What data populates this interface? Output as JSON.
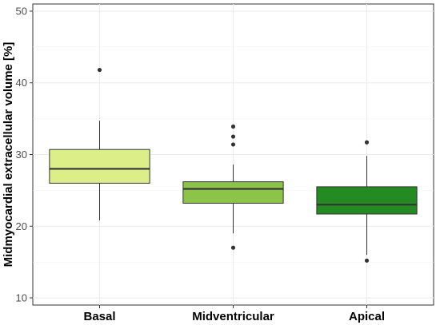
{
  "chart_data": {
    "type": "box",
    "title": "",
    "xlabel": "",
    "ylabel": "Midmyocardial extracellular volume [%]",
    "ylim": [
      9,
      51
    ],
    "y_ticks": [
      10,
      20,
      30,
      40,
      50
    ],
    "grid": true,
    "legend": "none",
    "categories": [
      "Basal",
      "Midventricular",
      "Apical"
    ],
    "boxes": [
      {
        "category": "Basal",
        "whisker_low": 20.8,
        "q1": 26.0,
        "median": 28.0,
        "q3": 30.7,
        "whisker_high": 34.7,
        "outliers": [
          41.8
        ],
        "color": "#dcee88"
      },
      {
        "category": "Midventricular",
        "whisker_low": 19.0,
        "q1": 23.2,
        "median": 25.2,
        "q3": 26.2,
        "whisker_high": 28.6,
        "outliers": [
          33.9,
          32.5,
          31.4,
          17.0
        ],
        "color": "#8cc349"
      },
      {
        "category": "Apical",
        "whisker_low": 16.0,
        "q1": 21.7,
        "median": 23.0,
        "q3": 25.5,
        "whisker_high": 29.8,
        "outliers": [
          31.7,
          15.2
        ],
        "color": "#248b22"
      }
    ]
  }
}
